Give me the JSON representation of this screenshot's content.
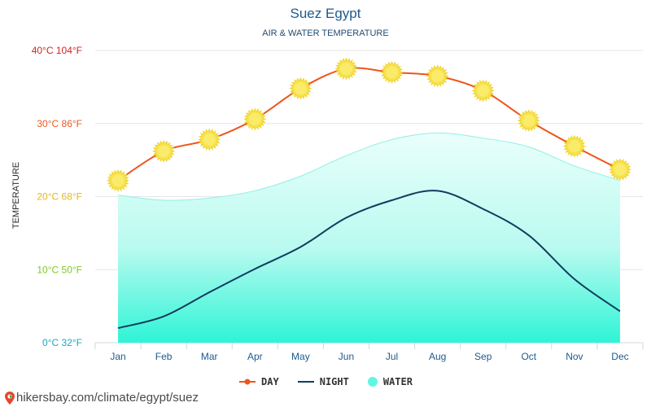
{
  "header": {
    "title": "Suez Egypt",
    "subtitle": "AIR & WATER TEMPERATURE"
  },
  "footer": {
    "url": "hikersbay.com/climate/egypt/suez"
  },
  "colors": {
    "day": "#f0541a",
    "night": "#113c5e",
    "water": "#00ffdc",
    "sun": "#f7e24b",
    "title": "#1d5a8e"
  },
  "chart_data": {
    "type": "line",
    "title": "Suez Egypt",
    "subtitle": "AIR & WATER TEMPERATURE",
    "ylabel": "TEMPERATURE",
    "xlabel": "",
    "categories": [
      "Jan",
      "Feb",
      "Mar",
      "Apr",
      "May",
      "Jun",
      "Jul",
      "Aug",
      "Sep",
      "Oct",
      "Nov",
      "Dec"
    ],
    "ylim": [
      0,
      40
    ],
    "yticks": [
      {
        "value": 0,
        "label": "0°C 32°F",
        "color": "#1aa7c4"
      },
      {
        "value": 10,
        "label": "10°C 50°F",
        "color": "#7ccc1c"
      },
      {
        "value": 20,
        "label": "20°C 68°F",
        "color": "#e6b81c"
      },
      {
        "value": 30,
        "label": "30°C 86°F",
        "color": "#ee5a1f"
      },
      {
        "value": 40,
        "label": "40°C 104°F",
        "color": "#d81f1f"
      }
    ],
    "grid": true,
    "legend_position": "bottom",
    "series": [
      {
        "name": "DAY",
        "kind": "line-sun",
        "values": [
          22.2,
          26.2,
          27.8,
          30.6,
          34.8,
          37.5,
          37.0,
          36.5,
          34.5,
          30.4,
          26.9,
          23.7
        ]
      },
      {
        "name": "NIGHT",
        "kind": "line",
        "values": [
          2.0,
          3.6,
          6.9,
          10.1,
          13.1,
          17.1,
          19.5,
          20.8,
          18.3,
          14.7,
          8.7,
          4.3
        ]
      },
      {
        "name": "WATER",
        "kind": "area",
        "values": [
          20.2,
          19.5,
          19.8,
          20.8,
          22.8,
          25.6,
          27.8,
          28.7,
          28.0,
          26.8,
          24.2,
          22.2
        ]
      }
    ]
  }
}
